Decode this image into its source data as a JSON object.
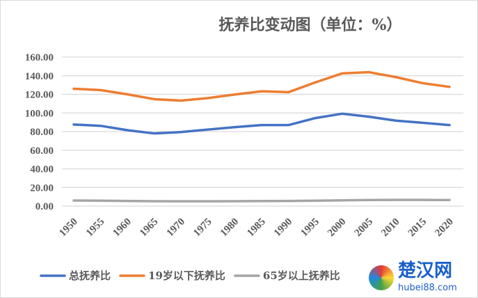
{
  "chart_data": {
    "type": "line",
    "title": "抚养比变动图（单位：%）",
    "x": [
      "1950",
      "1955",
      "1960",
      "1965",
      "1970",
      "1975",
      "1980",
      "1985",
      "1990",
      "1995",
      "2000",
      "2005",
      "2010",
      "2015",
      "2020"
    ],
    "ylim": [
      0,
      160
    ],
    "yticks": [
      "0.00",
      "20.00",
      "40.00",
      "60.00",
      "80.00",
      "100.00",
      "120.00",
      "140.00",
      "160.00"
    ],
    "grid": true,
    "legend": "bottom",
    "series": [
      {
        "name": "总抚养比",
        "color": "#4472c4",
        "values": [
          87.6,
          86.2,
          81.5,
          78,
          79.5,
          82.2,
          84.8,
          87,
          87,
          94.5,
          99.2,
          96,
          91.8,
          89.4,
          87
        ]
      },
      {
        "name": "19岁以下抚养比",
        "color": "#ed7d31",
        "values": [
          126,
          124.6,
          120,
          114.8,
          113.3,
          116,
          119.8,
          123.3,
          122.3,
          132.8,
          142.5,
          143.8,
          138.5,
          132,
          128
        ]
      },
      {
        "name": "65岁以上抚养比",
        "color": "#a5a5a5",
        "values": [
          6,
          5.8,
          5.5,
          5.2,
          5.1,
          5.1,
          5.2,
          5.4,
          5.5,
          5.8,
          6.2,
          6.5,
          6.6,
          6.6,
          6.5
        ]
      }
    ]
  },
  "watermark": {
    "text": "楚汉网",
    "url_text": "hubei88.com"
  }
}
